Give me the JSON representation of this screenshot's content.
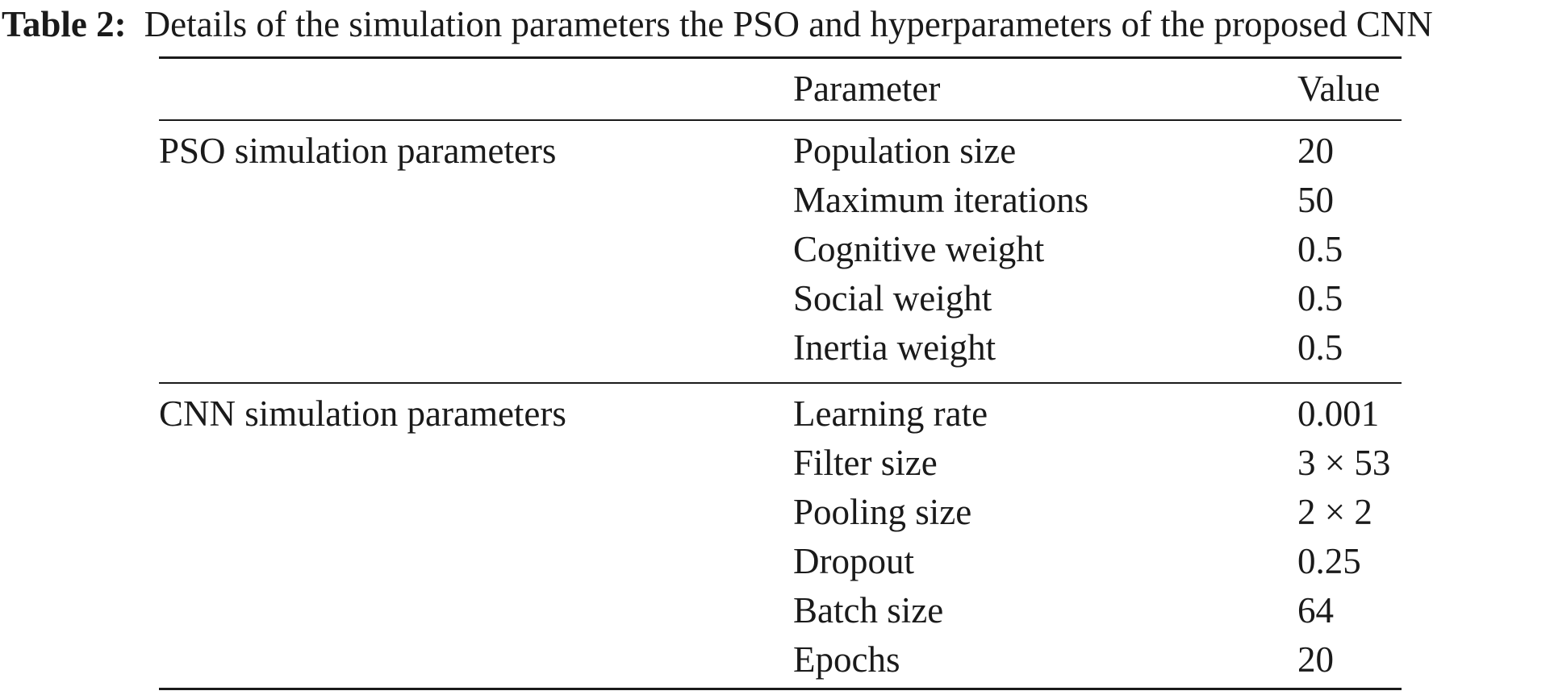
{
  "caption": {
    "label": "Table 2:",
    "text": "Details of the simulation parameters the PSO and hyperparameters of the proposed CNN"
  },
  "table": {
    "headers": {
      "group": "",
      "parameter": "Parameter",
      "value": "Value"
    },
    "sections": [
      {
        "group": "PSO simulation parameters",
        "rows": [
          {
            "parameter": "Population size",
            "value": "20"
          },
          {
            "parameter": "Maximum iterations",
            "value": "50"
          },
          {
            "parameter": "Cognitive weight",
            "value": "0.5"
          },
          {
            "parameter": "Social weight",
            "value": "0.5"
          },
          {
            "parameter": "Inertia weight",
            "value": "0.5"
          }
        ]
      },
      {
        "group": "CNN simulation parameters",
        "rows": [
          {
            "parameter": "Learning rate",
            "value": "0.001"
          },
          {
            "parameter": "Filter size",
            "value": "3 × 53"
          },
          {
            "parameter": "Pooling size",
            "value": "2 × 2"
          },
          {
            "parameter": "Dropout",
            "value": "0.25"
          },
          {
            "parameter": "Batch size",
            "value": "64"
          },
          {
            "parameter": "Epochs",
            "value": "20"
          }
        ]
      }
    ]
  }
}
